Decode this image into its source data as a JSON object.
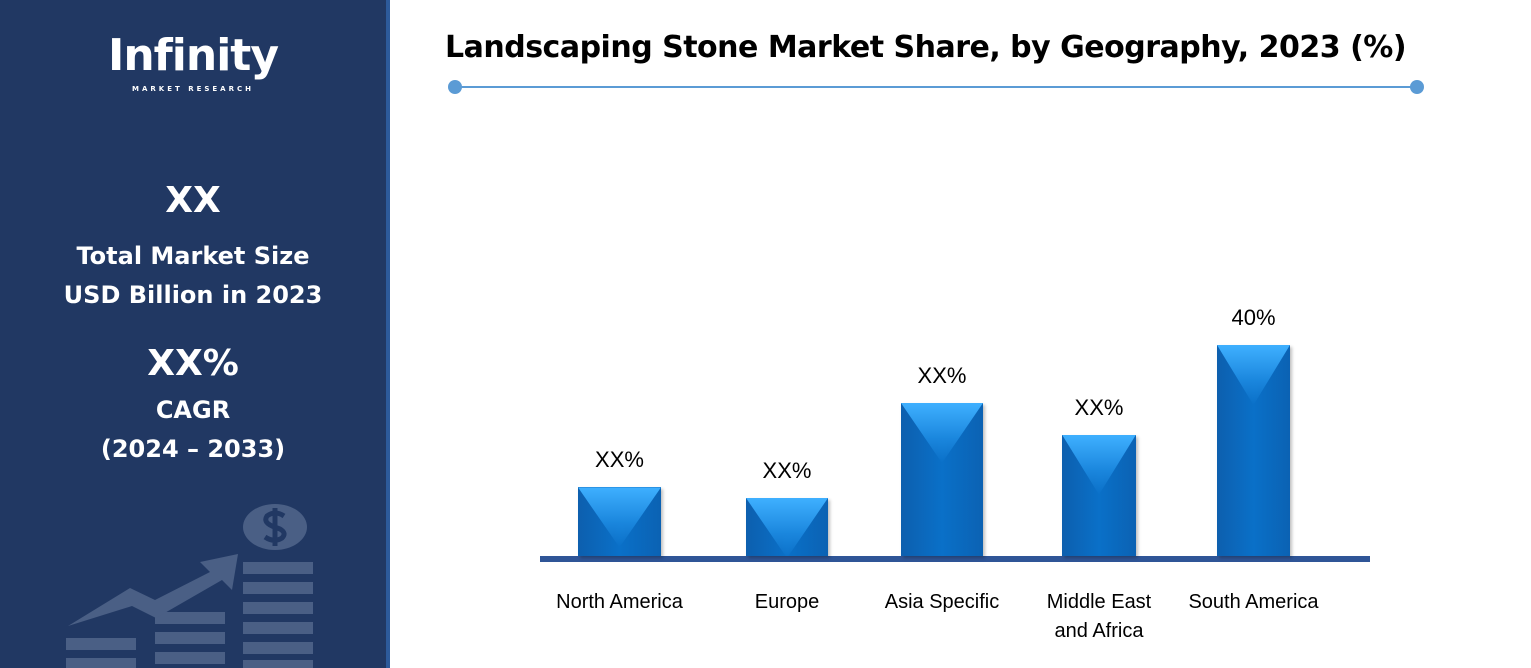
{
  "sidebar": {
    "logo_text": "Infinity",
    "logo_subtext": "MARKET RESEARCH",
    "market_size_value": "XX",
    "market_size_label_1": "Total Market Size",
    "market_size_label_2": "USD Billion in 2023",
    "cagr_value": "XX%",
    "cagr_label": "CAGR",
    "cagr_period": "(2024 – 2033)",
    "icon": "growth-chart-dollar-icon"
  },
  "chart_data": {
    "type": "bar",
    "title": "Landscaping Stone Market Share, by Geography, 2023 (%)",
    "categories": [
      "North America",
      "Europe",
      "Asia Specific",
      "Middle East and Africa",
      "South America"
    ],
    "values": [
      13,
      11,
      29,
      23,
      40
    ],
    "data_labels": [
      "XX%",
      "XX%",
      "XX%",
      "XX%",
      "40%"
    ],
    "xlabel": "",
    "ylabel": "",
    "ylim": [
      0,
      40
    ],
    "grid": false,
    "colors": {
      "bar": "#0a70c8",
      "axis": "#2f5597",
      "title_line": "#5b9bd5"
    }
  }
}
